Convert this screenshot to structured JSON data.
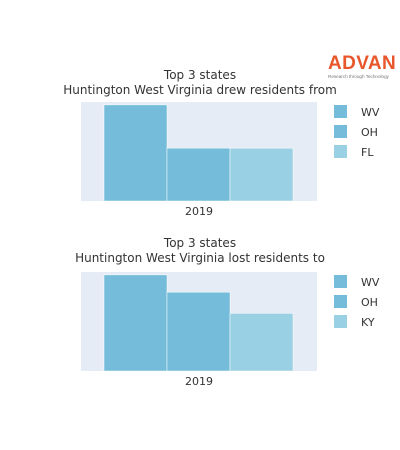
{
  "brand": {
    "name": "ADVAN",
    "tagline": "Research through Technology",
    "color": "#e8562b"
  },
  "chart_data": [
    {
      "type": "bar",
      "title": "Top 3 states",
      "subtitle": "Huntington West Virginia drew residents from",
      "categories": [
        "2019"
      ],
      "series": [
        {
          "name": "WV",
          "values": [
            1.0
          ],
          "color": "#74bcd9"
        },
        {
          "name": "OH",
          "values": [
            0.55
          ],
          "color": "#74bcd9"
        },
        {
          "name": "FL",
          "values": [
            0.55
          ],
          "color": "#9ad0e4"
        }
      ],
      "ylim": [
        0,
        1.03
      ],
      "xlabel": "",
      "ylabel": "",
      "grid": false,
      "legend_position": "right",
      "background": "#e5ecf6"
    },
    {
      "type": "bar",
      "title": "Top 3 states",
      "subtitle": "Huntington West Virginia lost residents to",
      "categories": [
        "2019"
      ],
      "series": [
        {
          "name": "WV",
          "values": [
            1.0
          ],
          "color": "#74bcd9"
        },
        {
          "name": "OH",
          "values": [
            0.82
          ],
          "color": "#74bcd9"
        },
        {
          "name": "KY",
          "values": [
            0.6
          ],
          "color": "#9ad0e4"
        }
      ],
      "ylim": [
        0,
        1.03
      ],
      "xlabel": "",
      "ylabel": "",
      "grid": false,
      "legend_position": "right",
      "background": "#e5ecf6"
    }
  ]
}
